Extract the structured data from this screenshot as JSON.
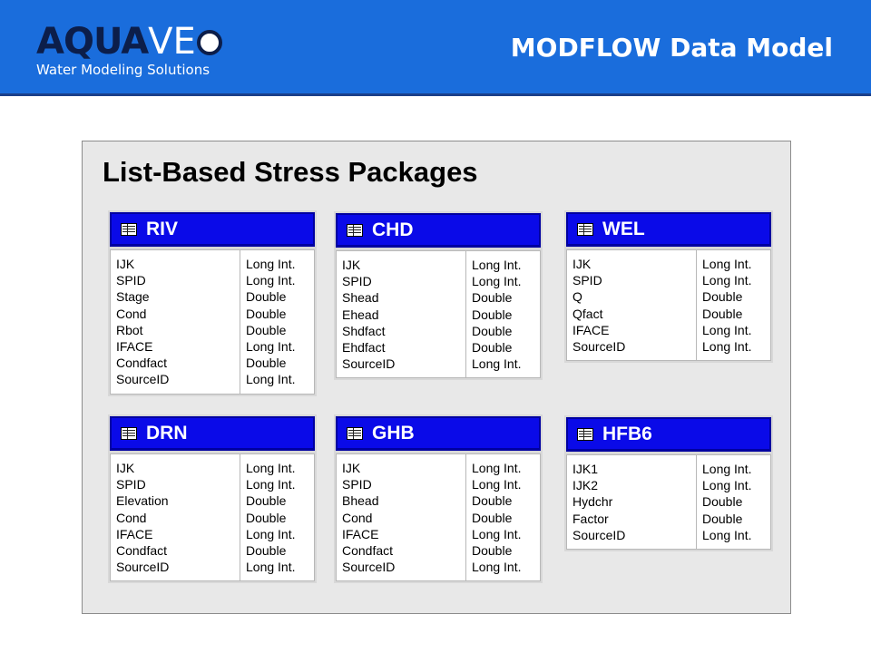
{
  "header": {
    "logo_bold": "AQUA",
    "logo_light": "VE",
    "logo_tagline": "Water Modeling Solutions",
    "title": "MODFLOW Data Model",
    "colors": {
      "bar": "#1a6ddc",
      "table_header": "#0a0ae8"
    }
  },
  "panel": {
    "title": "List-Based Stress Packages"
  },
  "tables": [
    {
      "name": "RIV",
      "fields": [
        "IJK",
        "SPID",
        "Stage",
        "Cond",
        "Rbot",
        "IFACE",
        "Condfact",
        "SourceID"
      ],
      "types": [
        "Long Int.",
        "Long Int.",
        "Double",
        "Double",
        "Double",
        "Long Int.",
        "Double",
        "Long Int."
      ]
    },
    {
      "name": "CHD",
      "fields": [
        "IJK",
        "SPID",
        "Shead",
        "Ehead",
        "Shdfact",
        "Ehdfact",
        "SourceID"
      ],
      "types": [
        "Long Int.",
        "Long Int.",
        "Double",
        "Double",
        "Double",
        "Double",
        "Long Int."
      ]
    },
    {
      "name": "WEL",
      "fields": [
        "IJK",
        "SPID",
        "Q",
        "Qfact",
        "IFACE",
        "SourceID"
      ],
      "types": [
        "Long Int.",
        "Long Int.",
        "Double",
        "Double",
        "Long Int.",
        "Long Int."
      ]
    },
    {
      "name": "DRN",
      "fields": [
        "IJK",
        "SPID",
        "Elevation",
        "Cond",
        "IFACE",
        "Condfact",
        "SourceID"
      ],
      "types": [
        "Long Int.",
        "Long Int.",
        "Double",
        "Double",
        "Long Int.",
        "Double",
        "Long Int."
      ]
    },
    {
      "name": "GHB",
      "fields": [
        "IJK",
        "SPID",
        "Bhead",
        "Cond",
        "IFACE",
        "Condfact",
        "SourceID"
      ],
      "types": [
        "Long Int.",
        "Long Int.",
        "Double",
        "Double",
        "Long Int.",
        "Double",
        "Long Int."
      ]
    },
    {
      "name": "HFB6",
      "fields": [
        "IJK1",
        "IJK2",
        "Hydchr",
        "Factor",
        "SourceID"
      ],
      "types": [
        "Long Int.",
        "Long Int.",
        "Double",
        "Double",
        "Long Int."
      ]
    }
  ]
}
